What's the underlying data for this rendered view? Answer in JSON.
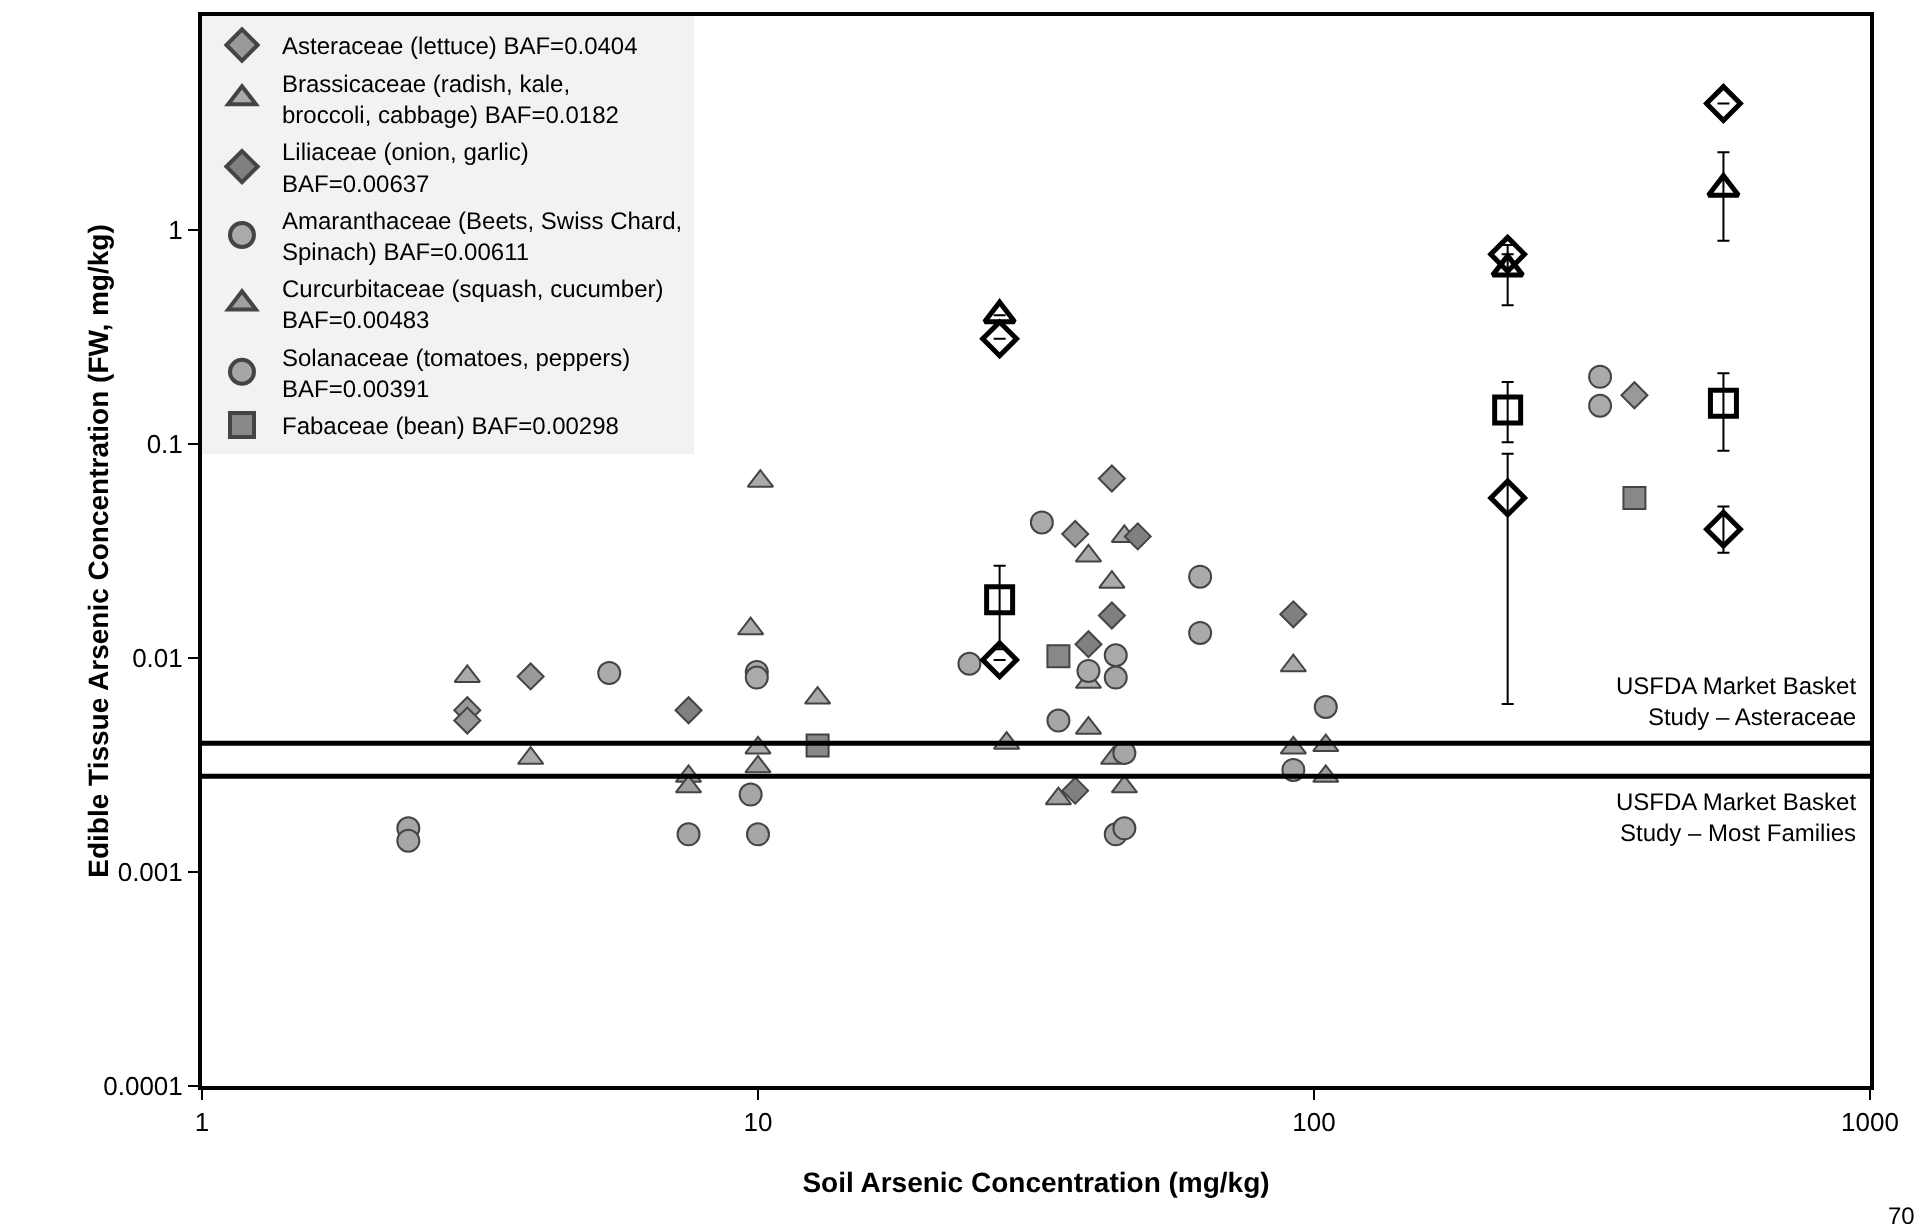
{
  "chart_data": {
    "type": "scatter",
    "xlabel": "Soil Arsenic Concentration (mg/kg)",
    "ylabel": "Edible Tissue Arsenic Concentration (FW, mg/kg)",
    "log": "xy",
    "grid": false,
    "legend": "top left",
    "xlim": [
      1,
      1000
    ],
    "xticks": [
      1,
      10,
      100,
      1000
    ],
    "ylim": [
      0.0001,
      10
    ],
    "yticks": [
      0.0001,
      0.001,
      0.01,
      0.1,
      1
    ],
    "series": [
      {
        "name": "Asteraceae (lettuce) BAF=0.0404",
        "color": "#999999",
        "marker": "diamond",
        "x": [
          3.0,
          3.0,
          3.9,
          43.3,
          37.2,
          377
        ],
        "values": [
          0.0057,
          0.0051,
          0.0082,
          0.069,
          0.038,
          0.169
        ]
      },
      {
        "name": "Brassicaceae (radish, kale, broccoli, cabbage) BAF=0.0182",
        "color": "#aaaaaa",
        "marker": "triangle",
        "x": [
          10.1,
          9.7,
          3.0,
          12.8,
          39.3,
          45.6,
          43.3,
          91.8,
          3.9,
          39.3,
          10
        ],
        "values": [
          0.067,
          0.0137,
          0.0082,
          0.0065,
          0.03,
          0.037,
          0.0226,
          0.0092,
          0.0034,
          0.0077,
          0.0038
        ]
      },
      {
        "name": "Liliaceae (onion, garlic) BAF=0.00637",
        "color": "#808080",
        "marker": "diamond",
        "x": [
          7.5,
          48.2,
          43.3,
          39.3,
          37.2,
          91.8
        ],
        "values": [
          0.0057,
          0.037,
          0.0158,
          0.0116,
          0.0024,
          0.016
        ]
      },
      {
        "name": "Amaranthaceae (Beets, Swiss Chard, Spinach) BAF=0.00611",
        "color": "#aaaaaa",
        "marker": "circle",
        "x": [
          5.4,
          9.95,
          9.95,
          24,
          32.4,
          62.4,
          62.4,
          327,
          327,
          44,
          39.3
        ],
        "values": [
          0.0085,
          0.0086,
          0.0081,
          0.0094,
          0.043,
          0.024,
          0.0131,
          0.206,
          0.151,
          0.0103,
          0.0087
        ]
      },
      {
        "name": "Curcurbitaceae (squash, cucumber) BAF=0.00483",
        "color": "#a0a0a0",
        "marker": "triangle",
        "x": [
          7.5,
          7.5,
          10,
          28,
          39.3,
          43.6,
          45.6,
          34.7,
          91.8,
          105,
          105
        ],
        "values": [
          0.0028,
          0.0025,
          0.0031,
          0.004,
          0.0047,
          0.0034,
          0.0025,
          0.0022,
          0.0038,
          0.0039,
          0.0028
        ]
      },
      {
        "name": "Solanaceae (tomatoes, peppers) BAF=0.00391",
        "color": "#a6a6a6",
        "marker": "circle",
        "x": [
          2.35,
          2.35,
          7.5,
          9.7,
          10,
          44,
          34.7,
          45.6,
          44,
          45.6,
          91.8,
          105
        ],
        "values": [
          0.0016,
          0.0014,
          0.0015,
          0.0023,
          0.0015,
          0.0081,
          0.0051,
          0.0036,
          0.0015,
          0.0016,
          0.003,
          0.0059
        ]
      },
      {
        "name": "Fabaceae (bean) BAF=0.00298",
        "color": "#888888",
        "marker": "square",
        "x": [
          12.8,
          34.7,
          377
        ],
        "values": [
          0.0039,
          0.0102,
          0.056
        ]
      },
      {
        "color": "#000000",
        "marker": "diamond",
        "x": [
          27.2,
          27.2,
          223,
          223,
          545,
          545
        ],
        "values": [
          0.31,
          0.0098,
          0.77,
          0.056,
          3.9,
          0.04
        ],
        "errors": [
          null,
          null,
          null,
          [
            0.0061,
            0.09
          ],
          null,
          [
            0.031,
            0.051
          ]
        ]
      },
      {
        "color": "#000000",
        "marker": "triangle",
        "x": [
          27.2,
          223,
          545
        ],
        "values": [
          0.4,
          0.66,
          1.56
        ],
        "errors": [
          null,
          [
            0.445,
            0.85
          ],
          [
            0.89,
            2.31
          ]
        ]
      },
      {
        "color": "#000000",
        "marker": "square",
        "x": [
          27.2,
          223,
          545
        ],
        "values": [
          0.0187,
          0.144,
          0.155
        ],
        "errors": [
          [
            0.011,
            0.027
          ],
          [
            0.102,
            0.195
          ],
          [
            0.093,
            0.214
          ]
        ]
      }
    ],
    "ref_lines": [
      {
        "axis": "y",
        "value": 0.004,
        "label": "USFDA Market Basket Study – Asteraceae",
        "color": "#000000"
      },
      {
        "axis": "y",
        "value": 0.0028,
        "label": "USFDA Market Basket Study – Most Families",
        "color": "#000000"
      }
    ],
    "annotations": [
      "70"
    ]
  }
}
